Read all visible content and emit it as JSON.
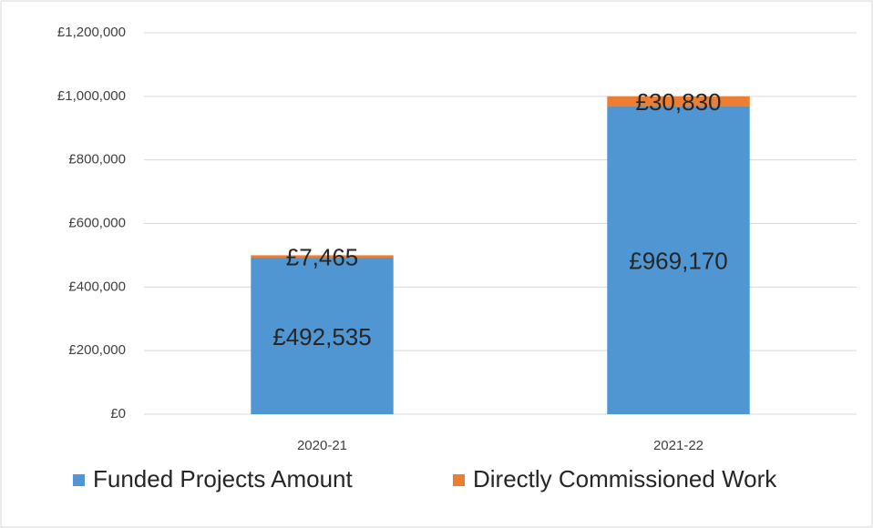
{
  "chart_data": {
    "type": "bar",
    "stacked": true,
    "categories": [
      "2020-21",
      "2021-22"
    ],
    "series": [
      {
        "name": "Funded Projects Amount",
        "color": "#5096d3",
        "values": [
          492535,
          969170
        ],
        "value_labels": [
          "£492,535",
          "£969,170"
        ]
      },
      {
        "name": "Directly Commissioned Work",
        "color": "#ed7d31",
        "values": [
          7465,
          30830
        ],
        "value_labels": [
          "£7,465",
          "£30,830"
        ]
      }
    ],
    "ylim": [
      0,
      1200000
    ],
    "yticks": [
      {
        "value": 0,
        "label": "£0"
      },
      {
        "value": 200000,
        "label": "£200,000"
      },
      {
        "value": 400000,
        "label": "£400,000"
      },
      {
        "value": 600000,
        "label": "£600,000"
      },
      {
        "value": 800000,
        "label": "£800,000"
      },
      {
        "value": 1000000,
        "label": "£1,000,000"
      },
      {
        "value": 1200000,
        "label": "£1,200,000"
      }
    ],
    "grid": true,
    "legend": "bottom"
  }
}
